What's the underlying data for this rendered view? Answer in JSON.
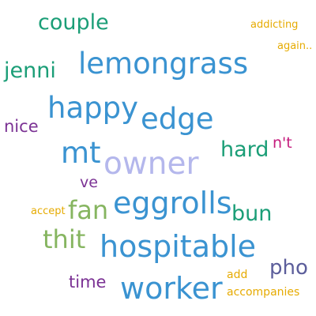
{
  "word_cloud": {
    "words": [
      {
        "text": "couple",
        "color": "#1b9e77"
      },
      {
        "text": "addicting",
        "color": "#e6ab02"
      },
      {
        "text": "again..",
        "color": "#e6ab02"
      },
      {
        "text": "jenni",
        "color": "#1b9e77"
      },
      {
        "text": "lemongrass",
        "color": "#3a93d1"
      },
      {
        "text": "happy",
        "color": "#3a93d1"
      },
      {
        "text": "edge",
        "color": "#3a93d1"
      },
      {
        "text": "nice",
        "color": "#7b3294"
      },
      {
        "text": "mt",
        "color": "#3a93d1"
      },
      {
        "text": "owner",
        "color": "#b4b7ec"
      },
      {
        "text": "hard",
        "color": "#1b9e77"
      },
      {
        "text": "n't",
        "color": "#c51b7d"
      },
      {
        "text": "ve",
        "color": "#7b3294"
      },
      {
        "text": "eggrolls",
        "color": "#3a93d1"
      },
      {
        "text": "accept",
        "color": "#e6ab02"
      },
      {
        "text": "fan",
        "color": "#86b560"
      },
      {
        "text": "bun",
        "color": "#1b9e77"
      },
      {
        "text": "thit",
        "color": "#86b560"
      },
      {
        "text": "hospitable",
        "color": "#3a93d1"
      },
      {
        "text": "pho",
        "color": "#5c5e9b"
      },
      {
        "text": "add",
        "color": "#e6ab02"
      },
      {
        "text": "time",
        "color": "#7b3294"
      },
      {
        "text": "worker",
        "color": "#3a93d1"
      },
      {
        "text": "accompanies",
        "color": "#e6ab02"
      }
    ]
  }
}
